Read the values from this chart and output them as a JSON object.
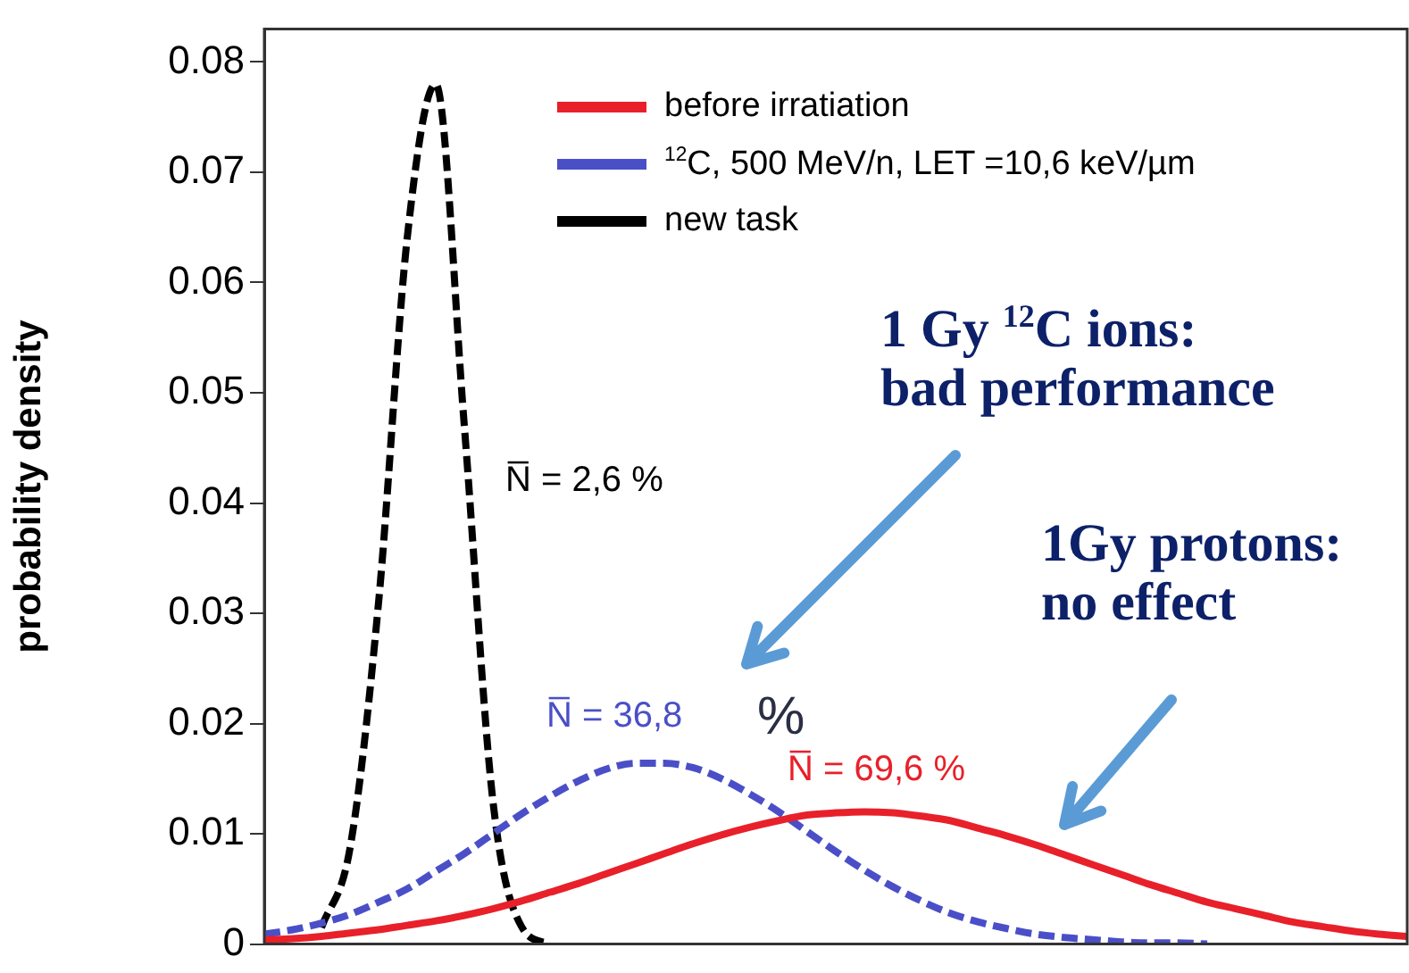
{
  "chart_data": {
    "type": "line",
    "ylabel": "probability density",
    "categories": [
      null,
      null,
      null,
      null,
      null,
      null,
      null,
      null,
      null,
      null,
      null,
      null,
      null,
      null,
      null,
      null,
      null,
      null,
      null,
      null,
      null,
      null,
      null,
      null,
      null,
      null,
      null,
      null,
      null,
      null,
      null,
      null,
      null,
      null,
      null,
      null,
      null,
      null,
      null,
      null,
      null
    ],
    "series": [
      {
        "name": "before irratiation",
        "color": "#e8202a",
        "line_style": "solid",
        "values": [
          0.0004,
          0.0005,
          0.0007,
          0.001,
          0.0013,
          0.0017,
          0.0021,
          0.0026,
          0.0032,
          0.0039,
          0.0047,
          0.0055,
          0.0064,
          0.0073,
          0.0082,
          0.0091,
          0.0099,
          0.0106,
          0.0112,
          0.0117,
          0.0119,
          0.012,
          0.0119,
          0.0116,
          0.0112,
          0.0105,
          0.0098,
          0.009,
          0.0081,
          0.0072,
          0.0063,
          0.0054,
          0.0046,
          0.0038,
          0.0032,
          0.0026,
          0.002,
          0.0016,
          0.0012,
          0.0009,
          0.0007
        ]
      },
      {
        "name": "$^{12}$C, 500 MeV/n, LET =10,6 keV/µm",
        "color": "#4a4fc8",
        "line_style": "dashed",
        "values": [
          0.0009,
          0.0013,
          0.0019,
          0.0027,
          0.0038,
          0.005,
          0.0066,
          0.0082,
          0.01,
          0.0118,
          0.0134,
          0.0148,
          0.0159,
          0.0164,
          0.0164,
          0.016,
          0.015,
          0.0136,
          0.012,
          0.0102,
          0.0084,
          0.0067,
          0.0052,
          0.0039,
          0.0028,
          0.002,
          0.0014,
          0.0009,
          0.0006,
          0.0004,
          0.0002,
          0.0001,
          0.0001,
          0,
          null,
          null,
          null,
          null,
          null,
          null,
          null
        ]
      },
      {
        "name": "new task",
        "color": "#000000",
        "line_style": "dashed",
        "values": [
          null,
          null,
          0.0015,
          0.0087,
          0.031,
          0.064,
          0.078,
          0.047,
          0.013,
          0.0016,
          0,
          null,
          null,
          null,
          null,
          null,
          null,
          null,
          null,
          null,
          null,
          null,
          null,
          null,
          null,
          null,
          null,
          null,
          null,
          null,
          null,
          null,
          null,
          null,
          null,
          null,
          null,
          null,
          null,
          null,
          null
        ]
      }
    ],
    "ylim": [
      0,
      0.083
    ],
    "yticks": [
      0,
      0.01,
      0.02,
      0.03,
      0.04,
      0.05,
      0.06,
      0.07,
      0.08
    ],
    "grid": false,
    "legend": "top right",
    "tick_labels": "y",
    "marker": "none",
    "annotations": [
      "N̅ = 2,6 %",
      "N̅ = 36,8",
      "%",
      "N̅ = 69,6 %",
      "1 Gy  $^{12}$C ions:\nbad performance",
      "1Gy protons:\nno effect"
    ]
  }
}
